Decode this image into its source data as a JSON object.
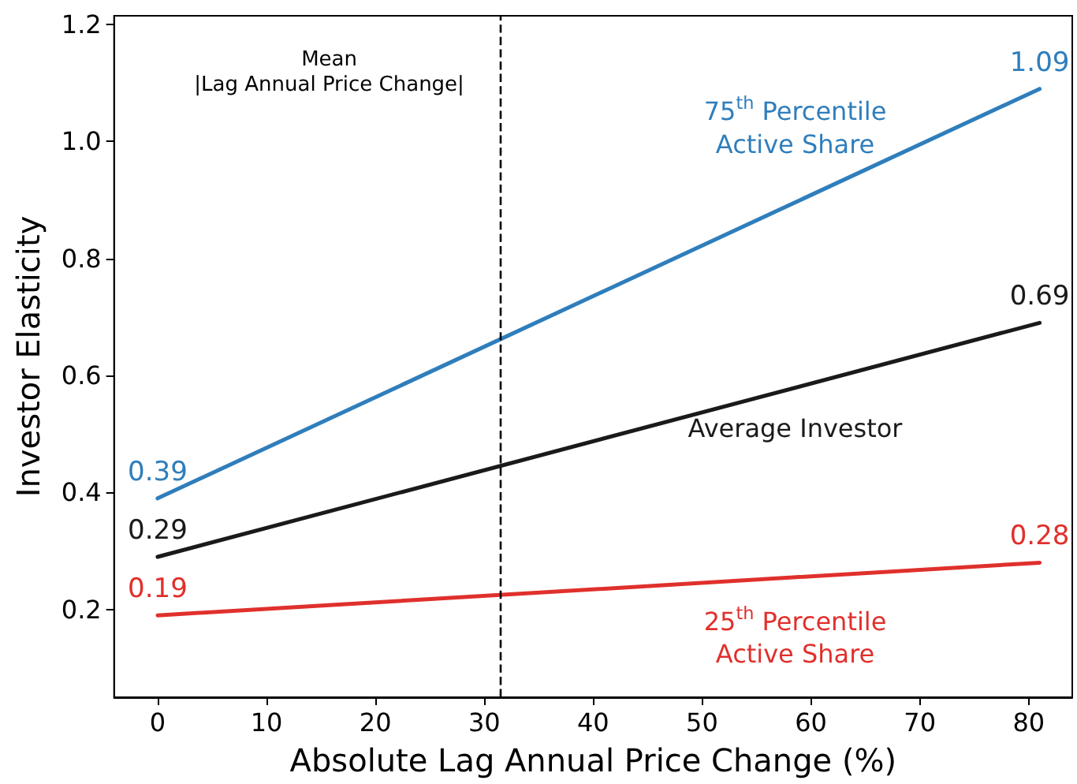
{
  "chart_data": {
    "type": "line",
    "xlabel": "Absolute Lag Annual Price Change (%)",
    "ylabel": "Investor Elasticity",
    "x": [
      0,
      81
    ],
    "series": [
      {
        "name": "75$^{th}$ Percentile\nActive Share",
        "color": "#2f7ebc",
        "values": [
          0.39,
          1.09
        ]
      },
      {
        "name": "Average Investor",
        "color": "#1a1a1a",
        "values": [
          0.29,
          0.69
        ]
      },
      {
        "name": "25$^{th}$ Percentile\nActive Share",
        "color": "#e0302c",
        "values": [
          0.19,
          0.28
        ]
      }
    ],
    "xlim": [
      -4,
      84
    ],
    "xticks": [
      0,
      10,
      20,
      30,
      40,
      50,
      60,
      70,
      80
    ],
    "ylim": [
      0.05,
      1.215
    ],
    "yticks": [
      0.2,
      0.4,
      0.6,
      0.8,
      {
        "value": 1,
        "label": "1.0"
      },
      1.2
    ],
    "ref_lines": [
      {
        "axis": "x",
        "value": 31.4,
        "label": "Mean\n|Lag Annual Price Change|",
        "color": "#000000",
        "line_style": "dashed"
      }
    ],
    "data_labels": true,
    "grid": false,
    "marker": "none",
    "line_style": "solid"
  }
}
